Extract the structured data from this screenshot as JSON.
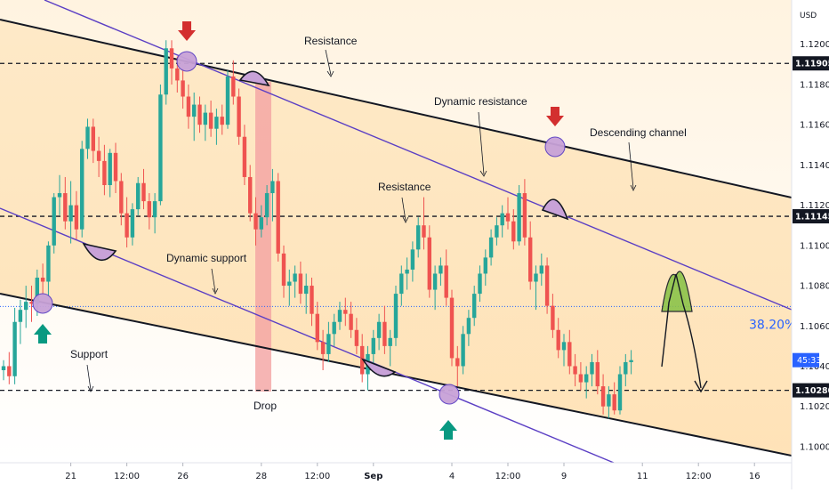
{
  "chart_data": {
    "type": "candlestick",
    "currency": "USD",
    "colors": {
      "up": "#26a69a",
      "down": "#ef5350",
      "channel": "#131722",
      "trend": "#5b3fc4",
      "level_line": "#131722",
      "fib_line": "#2962ff",
      "fib_text": "#2962ff",
      "arrow_down": "#d32f2f",
      "arrow_up": "#089981",
      "highlight": "#c8a2d8",
      "drop_zone": "#f4a3a3",
      "projection": "#8bc34a"
    },
    "y_axis": {
      "range": [
        1.0992,
        1.1222
      ],
      "ticks": [
        "1.12000",
        "1.11800",
        "1.11600",
        "1.11400",
        "1.11200",
        "1.11000",
        "1.10800",
        "1.10600",
        "1.10400",
        "1.10200",
        "1.10000"
      ]
    },
    "x_axis": {
      "ticks": [
        {
          "label": "21",
          "i": 12
        },
        {
          "label": "12:00",
          "i": 22
        },
        {
          "label": "26",
          "i": 32
        },
        {
          "label": "28",
          "i": 46
        },
        {
          "label": "12:00",
          "i": 56
        },
        {
          "label": "Sep",
          "i": 66
        },
        {
          "label": "4",
          "i": 80
        },
        {
          "label": "12:00",
          "i": 90
        },
        {
          "label": "9",
          "i": 100
        },
        {
          "label": "11",
          "i": 114
        },
        {
          "label": "12:00",
          "i": 124
        },
        {
          "label": "16",
          "i": 134
        }
      ]
    },
    "price_labels": [
      {
        "text": "1.11905",
        "value": 1.11905
      },
      {
        "text": "1.11145",
        "value": 1.11145
      },
      {
        "text": "1.10280",
        "value": 1.1028
      }
    ],
    "current": {
      "countdown": "45:33",
      "value": 1.1043
    },
    "fib": {
      "label": "38.20%",
      "value": 1.10697
    },
    "candles": [
      [
        1.1038,
        1.1043,
        1.1033,
        1.104
      ],
      [
        1.104,
        1.1047,
        1.1031,
        1.1035
      ],
      [
        1.1035,
        1.1069,
        1.1031,
        1.1062
      ],
      [
        1.1062,
        1.1073,
        1.1051,
        1.1068
      ],
      [
        1.1068,
        1.108,
        1.1059,
        1.1072
      ],
      [
        1.1072,
        1.108,
        1.1062,
        1.1071
      ],
      [
        1.1071,
        1.1088,
        1.1065,
        1.1084
      ],
      [
        1.1084,
        1.1091,
        1.1075,
        1.1082
      ],
      [
        1.1082,
        1.1102,
        1.1075,
        1.11
      ],
      [
        1.11,
        1.1126,
        1.1096,
        1.1124
      ],
      [
        1.1124,
        1.1135,
        1.1115,
        1.1126
      ],
      [
        1.1126,
        1.1134,
        1.1108,
        1.1112
      ],
      [
        1.1112,
        1.1132,
        1.1101,
        1.112
      ],
      [
        1.112,
        1.1127,
        1.1103,
        1.1108
      ],
      [
        1.1108,
        1.1152,
        1.1104,
        1.1148
      ],
      [
        1.1148,
        1.1163,
        1.1143,
        1.1159
      ],
      [
        1.1159,
        1.1163,
        1.1141,
        1.1147
      ],
      [
        1.1147,
        1.1154,
        1.1134,
        1.1142
      ],
      [
        1.1142,
        1.115,
        1.1125,
        1.113
      ],
      [
        1.113,
        1.1148,
        1.1124,
        1.1146
      ],
      [
        1.1146,
        1.1151,
        1.1126,
        1.1132
      ],
      [
        1.1132,
        1.1136,
        1.111,
        1.1116
      ],
      [
        1.1116,
        1.1124,
        1.1099,
        1.1104
      ],
      [
        1.1104,
        1.1121,
        1.11,
        1.1118
      ],
      [
        1.1118,
        1.1134,
        1.1115,
        1.1131
      ],
      [
        1.1131,
        1.1138,
        1.1118,
        1.1122
      ],
      [
        1.1122,
        1.1126,
        1.1108,
        1.1114
      ],
      [
        1.1114,
        1.1126,
        1.1106,
        1.1122
      ],
      [
        1.1122,
        1.118,
        1.112,
        1.1175
      ],
      [
        1.1175,
        1.1202,
        1.117,
        1.1198
      ],
      [
        1.1198,
        1.1202,
        1.118,
        1.1188
      ],
      [
        1.1188,
        1.1194,
        1.1176,
        1.1182
      ],
      [
        1.1182,
        1.1188,
        1.1168,
        1.1174
      ],
      [
        1.1174,
        1.118,
        1.1158,
        1.1164
      ],
      [
        1.1164,
        1.1176,
        1.1152,
        1.117
      ],
      [
        1.117,
        1.1174,
        1.1156,
        1.116
      ],
      [
        1.116,
        1.117,
        1.1152,
        1.1166
      ],
      [
        1.1166,
        1.1172,
        1.1154,
        1.1158
      ],
      [
        1.1158,
        1.1168,
        1.115,
        1.1164
      ],
      [
        1.1164,
        1.117,
        1.1155,
        1.116
      ],
      [
        1.116,
        1.1187,
        1.1158,
        1.1184
      ],
      [
        1.1184,
        1.1192,
        1.117,
        1.1174
      ],
      [
        1.1174,
        1.1178,
        1.115,
        1.1154
      ],
      [
        1.1154,
        1.116,
        1.113,
        1.1134
      ],
      [
        1.1134,
        1.114,
        1.1112,
        1.1116
      ],
      [
        1.1116,
        1.1124,
        1.11,
        1.1108
      ],
      [
        1.1108,
        1.112,
        1.1104,
        1.1114
      ],
      [
        1.1114,
        1.113,
        1.111,
        1.1126
      ],
      [
        1.1126,
        1.1138,
        1.1112,
        1.1132
      ],
      [
        1.1132,
        1.1136,
        1.1092,
        1.1096
      ],
      [
        1.1096,
        1.11,
        1.1074,
        1.108
      ],
      [
        1.108,
        1.1088,
        1.107,
        1.1082
      ],
      [
        1.1082,
        1.109,
        1.1074,
        1.1086
      ],
      [
        1.1086,
        1.1092,
        1.1071,
        1.1076
      ],
      [
        1.1076,
        1.1086,
        1.1066,
        1.108
      ],
      [
        1.108,
        1.1084,
        1.106,
        1.1066
      ],
      [
        1.1066,
        1.1072,
        1.1048,
        1.1052
      ],
      [
        1.1052,
        1.1058,
        1.1038,
        1.1046
      ],
      [
        1.1046,
        1.1062,
        1.1042,
        1.1056
      ],
      [
        1.1056,
        1.1066,
        1.105,
        1.1062
      ],
      [
        1.1062,
        1.1072,
        1.1058,
        1.1068
      ],
      [
        1.1068,
        1.1074,
        1.106,
        1.1066
      ],
      [
        1.1066,
        1.1072,
        1.1054,
        1.1058
      ],
      [
        1.1058,
        1.1064,
        1.1046,
        1.105
      ],
      [
        1.105,
        1.1056,
        1.1032,
        1.1036
      ],
      [
        1.1036,
        1.105,
        1.1028,
        1.1046
      ],
      [
        1.1046,
        1.1058,
        1.104,
        1.1054
      ],
      [
        1.1054,
        1.1066,
        1.1048,
        1.1062
      ],
      [
        1.1062,
        1.107,
        1.1046,
        1.105
      ],
      [
        1.105,
        1.1058,
        1.104,
        1.1054
      ],
      [
        1.1054,
        1.108,
        1.105,
        1.1076
      ],
      [
        1.1076,
        1.109,
        1.107,
        1.1086
      ],
      [
        1.1086,
        1.1094,
        1.1078,
        1.1088
      ],
      [
        1.1088,
        1.1102,
        1.1082,
        1.1098
      ],
      [
        1.1098,
        1.1114,
        1.1094,
        1.111
      ],
      [
        1.111,
        1.1124,
        1.1098,
        1.1104
      ],
      [
        1.1104,
        1.111,
        1.1074,
        1.1078
      ],
      [
        1.1078,
        1.109,
        1.1068,
        1.1086
      ],
      [
        1.1086,
        1.1094,
        1.108,
        1.109
      ],
      [
        1.109,
        1.1098,
        1.107,
        1.1074
      ],
      [
        1.1074,
        1.1078,
        1.104,
        1.1044
      ],
      [
        1.1044,
        1.105,
        1.103,
        1.104
      ],
      [
        1.104,
        1.106,
        1.1036,
        1.1056
      ],
      [
        1.1056,
        1.1068,
        1.105,
        1.1064
      ],
      [
        1.1064,
        1.108,
        1.106,
        1.1076
      ],
      [
        1.1076,
        1.109,
        1.1072,
        1.1086
      ],
      [
        1.1086,
        1.1098,
        1.108,
        1.1094
      ],
      [
        1.1094,
        1.1108,
        1.109,
        1.1104
      ],
      [
        1.1104,
        1.1114,
        1.11,
        1.111
      ],
      [
        1.111,
        1.112,
        1.1104,
        1.1116
      ],
      [
        1.1116,
        1.1124,
        1.1108,
        1.1112
      ],
      [
        1.1112,
        1.1118,
        1.1098,
        1.1102
      ],
      [
        1.1102,
        1.113,
        1.11,
        1.1126
      ],
      [
        1.1126,
        1.1133,
        1.11,
        1.1104
      ],
      [
        1.1104,
        1.1112,
        1.1078,
        1.1082
      ],
      [
        1.1082,
        1.109,
        1.1068,
        1.1086
      ],
      [
        1.1086,
        1.1096,
        1.108,
        1.109
      ],
      [
        1.109,
        1.1094,
        1.1066,
        1.107
      ],
      [
        1.107,
        1.1076,
        1.1054,
        1.1058
      ],
      [
        1.1058,
        1.1064,
        1.1044,
        1.1048
      ],
      [
        1.1048,
        1.1056,
        1.104,
        1.1052
      ],
      [
        1.1052,
        1.1058,
        1.1036,
        1.104
      ],
      [
        1.104,
        1.1046,
        1.103,
        1.1036
      ],
      [
        1.1036,
        1.1042,
        1.1028,
        1.1032
      ],
      [
        1.1032,
        1.104,
        1.1024,
        1.1036
      ],
      [
        1.1036,
        1.1046,
        1.103,
        1.1042
      ],
      [
        1.1042,
        1.1048,
        1.1026,
        1.103
      ],
      [
        1.103,
        1.1036,
        1.1016,
        1.102
      ],
      [
        1.102,
        1.103,
        1.1014,
        1.1026
      ],
      [
        1.1026,
        1.1032,
        1.1016,
        1.1018
      ],
      [
        1.1018,
        1.104,
        1.1016,
        1.1036
      ],
      [
        1.1036,
        1.1046,
        1.103,
        1.1042
      ],
      [
        1.1042,
        1.1048,
        1.1036,
        1.1043
      ]
    ],
    "annotations": [
      {
        "text": "Resistance"
      },
      {
        "text": "Dynamic resistance"
      },
      {
        "text": "Descending channel"
      },
      {
        "text": "Resistance"
      },
      {
        "text": "Dynamic support"
      },
      {
        "text": "Support"
      },
      {
        "text": "Drop"
      }
    ]
  }
}
